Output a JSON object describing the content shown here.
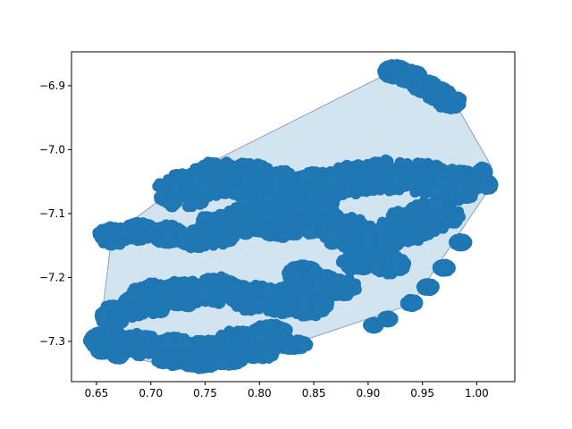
{
  "chart_data": {
    "type": "scatter",
    "title": "",
    "xlabel": "",
    "ylabel": "",
    "xlim": [
      0.627,
      1.035
    ],
    "ylim": [
      -7.363,
      -6.847
    ],
    "xticks": [
      0.65,
      0.7,
      0.75,
      0.8,
      0.85,
      0.9,
      0.95,
      1.0
    ],
    "xtick_labels": [
      "0.65",
      "0.70",
      "0.75",
      "0.80",
      "0.85",
      "0.90",
      "0.95",
      "1.00"
    ],
    "yticks": [
      -6.9,
      -7.0,
      -7.1,
      -7.2,
      -7.3
    ],
    "ytick_labels": [
      "−6.9",
      "−7.0",
      "−7.1",
      "−7.2",
      "−7.3"
    ],
    "grid": false,
    "legend": "none",
    "colors": {
      "points": "#1f77b4",
      "hull_fill": "#1f77b4",
      "hull_fill_opacity": 0.2,
      "hull_edge": "#8fa1b3"
    },
    "hull": {
      "x": [
        0.931,
        0.963,
        0.981,
        1.013,
        1.012,
        0.94,
        0.815,
        0.724,
        0.694,
        0.652,
        0.664,
        0.753
      ],
      "y": [
        -6.87,
        -6.895,
        -6.93,
        -7.025,
        -7.06,
        -7.242,
        -7.313,
        -7.34,
        -7.33,
        -7.303,
        -7.135,
        -7.022
      ]
    },
    "point_clusters": [
      {
        "x": [
          0.925,
          0.938,
          0.952,
          0.965,
          0.975
        ],
        "y": [
          -6.878,
          -6.885,
          -6.9,
          -6.913,
          -6.925
        ],
        "jitter_x": 0.012,
        "jitter_y": 0.012
      },
      {
        "x": [
          0.665,
          0.69,
          0.715,
          0.74
        ],
        "y": [
          -7.135,
          -7.128,
          -7.132,
          -7.14
        ],
        "jitter_x": 0.015,
        "jitter_y": 0.015
      },
      {
        "x": [
          0.73,
          0.76,
          0.79,
          0.82,
          0.845
        ],
        "y": [
          -7.065,
          -7.045,
          -7.048,
          -7.06,
          -7.08
        ],
        "jitter_x": 0.025,
        "jitter_y": 0.028
      },
      {
        "x": [
          0.76,
          0.79,
          0.82
        ],
        "y": [
          -7.125,
          -7.11,
          -7.115
        ],
        "jitter_x": 0.022,
        "jitter_y": 0.025
      },
      {
        "x": [
          0.86,
          0.89,
          0.92,
          0.95,
          0.98
        ],
        "y": [
          -7.055,
          -7.045,
          -7.04,
          -7.045,
          -7.055
        ],
        "jitter_x": 0.025,
        "jitter_y": 0.025
      },
      {
        "x": [
          0.85,
          0.88,
          0.905,
          0.935,
          0.96
        ],
        "y": [
          -7.11,
          -7.13,
          -7.15,
          -7.12,
          -7.105
        ],
        "jitter_x": 0.025,
        "jitter_y": 0.025
      },
      {
        "x": [
          0.89,
          0.92
        ],
        "y": [
          -7.175,
          -7.18
        ],
        "jitter_x": 0.015,
        "jitter_y": 0.015
      },
      {
        "x": [
          1.005,
          1.01
        ],
        "y": [
          -7.035,
          -7.055
        ],
        "jitter_x": 0.005,
        "jitter_y": 0.008
      },
      {
        "x": [
          0.985,
          0.97,
          0.955,
          0.94
        ],
        "y": [
          -7.145,
          -7.185,
          -7.215,
          -7.24
        ],
        "jitter_x": 0.006,
        "jitter_y": 0.006
      },
      {
        "x": [
          0.905,
          0.918
        ],
        "y": [
          -7.275,
          -7.265
        ],
        "jitter_x": 0.005,
        "jitter_y": 0.005
      },
      {
        "x": [
          0.665,
          0.685,
          0.705
        ],
        "y": [
          -7.26,
          -7.245,
          -7.24
        ],
        "jitter_x": 0.012,
        "jitter_y": 0.018
      },
      {
        "x": [
          0.7,
          0.73,
          0.76,
          0.79,
          0.82,
          0.845
        ],
        "y": [
          -7.23,
          -7.225,
          -7.22,
          -7.23,
          -7.235,
          -7.24
        ],
        "jitter_x": 0.02,
        "jitter_y": 0.022
      },
      {
        "x": [
          0.66,
          0.69,
          0.72,
          0.75,
          0.78,
          0.81
        ],
        "y": [
          -7.3,
          -7.305,
          -7.31,
          -7.315,
          -7.3,
          -7.29
        ],
        "jitter_x": 0.018,
        "jitter_y": 0.018
      },
      {
        "x": [
          0.655,
          0.67
        ],
        "y": [
          -7.315,
          -7.322
        ],
        "jitter_x": 0.006,
        "jitter_y": 0.006
      },
      {
        "x": [
          0.72,
          0.745,
          0.77,
          0.8,
          0.83
        ],
        "y": [
          -7.33,
          -7.335,
          -7.33,
          -7.32,
          -7.305
        ],
        "jitter_x": 0.015,
        "jitter_y": 0.008
      },
      {
        "x": [
          0.84,
          0.86,
          0.875
        ],
        "y": [
          -7.195,
          -7.21,
          -7.215
        ],
        "jitter_x": 0.015,
        "jitter_y": 0.015
      }
    ]
  }
}
